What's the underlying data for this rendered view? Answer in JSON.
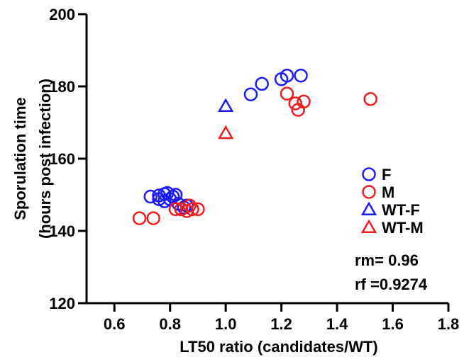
{
  "chart_data": {
    "type": "scatter",
    "xlabel": "LT50 ratio (candidates/WT)",
    "ylabel_line1": "Sporulation time",
    "ylabel_line2": "(hours post infection)",
    "xlim": [
      0.5,
      1.8
    ],
    "ylim": [
      120,
      200
    ],
    "x_ticks": [
      "0.6",
      "0.8",
      "1.0",
      "1.2",
      "1.4",
      "1.6",
      "1.8"
    ],
    "y_ticks": [
      "120",
      "140",
      "160",
      "180",
      "200"
    ],
    "legend_position": "right",
    "colors": {
      "blue": "#1a1aff",
      "red": "#ee1c1c"
    },
    "series": [
      {
        "name": "F",
        "marker": "circle",
        "color": "#1a1aff",
        "points": [
          [
            0.73,
            149.5
          ],
          [
            0.76,
            149.8
          ],
          [
            0.78,
            150.2
          ],
          [
            0.79,
            150.5
          ],
          [
            0.81,
            149.5
          ],
          [
            0.82,
            150.0
          ],
          [
            0.76,
            148.8
          ],
          [
            0.78,
            148.2
          ],
          [
            0.8,
            148.8
          ],
          [
            0.83,
            147.5
          ],
          [
            0.85,
            146.5
          ],
          [
            0.86,
            147.0
          ],
          [
            1.09,
            177.8
          ],
          [
            1.13,
            180.7
          ],
          [
            1.2,
            182.0
          ],
          [
            1.22,
            183.0
          ],
          [
            1.27,
            183.0
          ]
        ]
      },
      {
        "name": "M",
        "marker": "circle",
        "color": "#ee1c1c",
        "points": [
          [
            0.69,
            143.5
          ],
          [
            0.74,
            143.5
          ],
          [
            0.82,
            146.0
          ],
          [
            0.84,
            146.0
          ],
          [
            0.86,
            145.5
          ],
          [
            0.88,
            146.0
          ],
          [
            0.9,
            146.0
          ],
          [
            0.87,
            147.0
          ],
          [
            1.22,
            178.0
          ],
          [
            1.25,
            175.3
          ],
          [
            1.26,
            173.5
          ],
          [
            1.28,
            175.8
          ],
          [
            1.52,
            176.5
          ]
        ]
      },
      {
        "name": "WT-F",
        "marker": "triangle",
        "color": "#1a1aff",
        "points": [
          [
            1.0,
            174.5
          ]
        ]
      },
      {
        "name": "WT-M",
        "marker": "triangle",
        "color": "#ee1c1c",
        "points": [
          [
            1.0,
            167.0
          ]
        ]
      }
    ],
    "annotations": [
      "rm= 0.96",
      "rf =0.9274"
    ]
  }
}
